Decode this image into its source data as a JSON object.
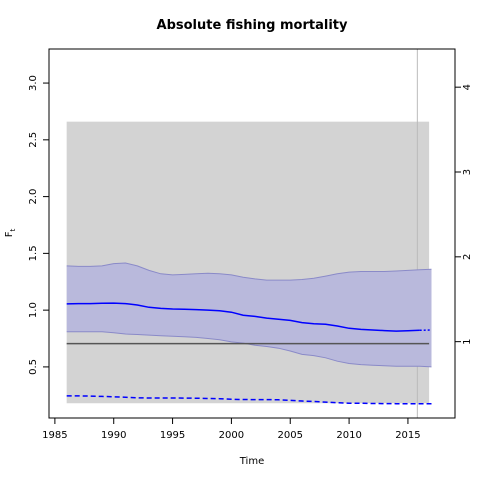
{
  "chart_data": {
    "type": "line",
    "title": "Absolute fishing mortality",
    "xlabel": "Time",
    "ylabel": "F",
    "ylabel_subscript": "t",
    "xlim": [
      1984.5,
      2019
    ],
    "ylim": [
      0.05,
      3.3
    ],
    "y2lim": [
      0.1,
      4.45
    ],
    "x_ticks": [
      1985,
      1990,
      1995,
      2000,
      2005,
      2010,
      2015
    ],
    "y_ticks": [
      0.5,
      1.0,
      1.5,
      2.0,
      2.5,
      3.0
    ],
    "y_tick_labels": [
      "0.5",
      "1.0",
      "1.5",
      "2.0",
      "2.5",
      "3.0"
    ],
    "y2_ticks": [
      1,
      2,
      3,
      4
    ],
    "grey_band": {
      "x": [
        1986,
        2016.8
      ],
      "y": [
        0.18,
        2.66
      ]
    },
    "reference_line": {
      "y": 0.705,
      "color": "#555555"
    },
    "vertical_marker": {
      "x": 2015.8
    },
    "x": [
      1986,
      1987,
      1988,
      1989,
      1990,
      1991,
      1992,
      1993,
      1994,
      1995,
      1996,
      1997,
      1998,
      1999,
      2000,
      2001,
      2002,
      2003,
      2004,
      2005,
      2006,
      2007,
      2008,
      2009,
      2010,
      2011,
      2012,
      2013,
      2014,
      2015,
      2016,
      2017
    ],
    "series": [
      {
        "name": "",
        "color": "#0000ff",
        "values": [
          1.055,
          1.058,
          1.058,
          1.06,
          1.062,
          1.058,
          1.045,
          1.025,
          1.015,
          1.01,
          1.008,
          1.005,
          1.0,
          0.995,
          0.982,
          0.955,
          0.945,
          0.93,
          0.92,
          0.91,
          0.89,
          0.88,
          0.875,
          0.86,
          0.84,
          0.83,
          0.825,
          0.82,
          0.815,
          0.818,
          0.822,
          0.825
        ],
        "lower": [
          0.81,
          0.81,
          0.81,
          0.81,
          0.8,
          0.79,
          0.785,
          0.78,
          0.775,
          0.77,
          0.765,
          0.76,
          0.75,
          0.74,
          0.72,
          0.71,
          0.69,
          0.68,
          0.665,
          0.64,
          0.61,
          0.6,
          0.58,
          0.55,
          0.53,
          0.52,
          0.515,
          0.51,
          0.505,
          0.505,
          0.505,
          0.5
        ],
        "upper": [
          1.39,
          1.385,
          1.385,
          1.39,
          1.41,
          1.415,
          1.39,
          1.35,
          1.32,
          1.31,
          1.315,
          1.32,
          1.325,
          1.32,
          1.31,
          1.29,
          1.275,
          1.265,
          1.265,
          1.265,
          1.27,
          1.28,
          1.3,
          1.32,
          1.335,
          1.34,
          1.34,
          1.34,
          1.345,
          1.35,
          1.355,
          1.36
        ]
      }
    ],
    "dashed_series": {
      "color": "#0000ff",
      "values": [
        0.245,
        0.245,
        0.243,
        0.24,
        0.237,
        0.232,
        0.228,
        0.226,
        0.226,
        0.226,
        0.225,
        0.224,
        0.222,
        0.22,
        0.215,
        0.213,
        0.212,
        0.212,
        0.21,
        0.205,
        0.2,
        0.195,
        0.19,
        0.185,
        0.18,
        0.18,
        0.178,
        0.177,
        0.176,
        0.176,
        0.175,
        0.175
      ]
    },
    "colors": {
      "band": "#d3d3d3",
      "ci_fill": "#b9b9dc",
      "ci_edge": "#8a8ac8"
    }
  }
}
